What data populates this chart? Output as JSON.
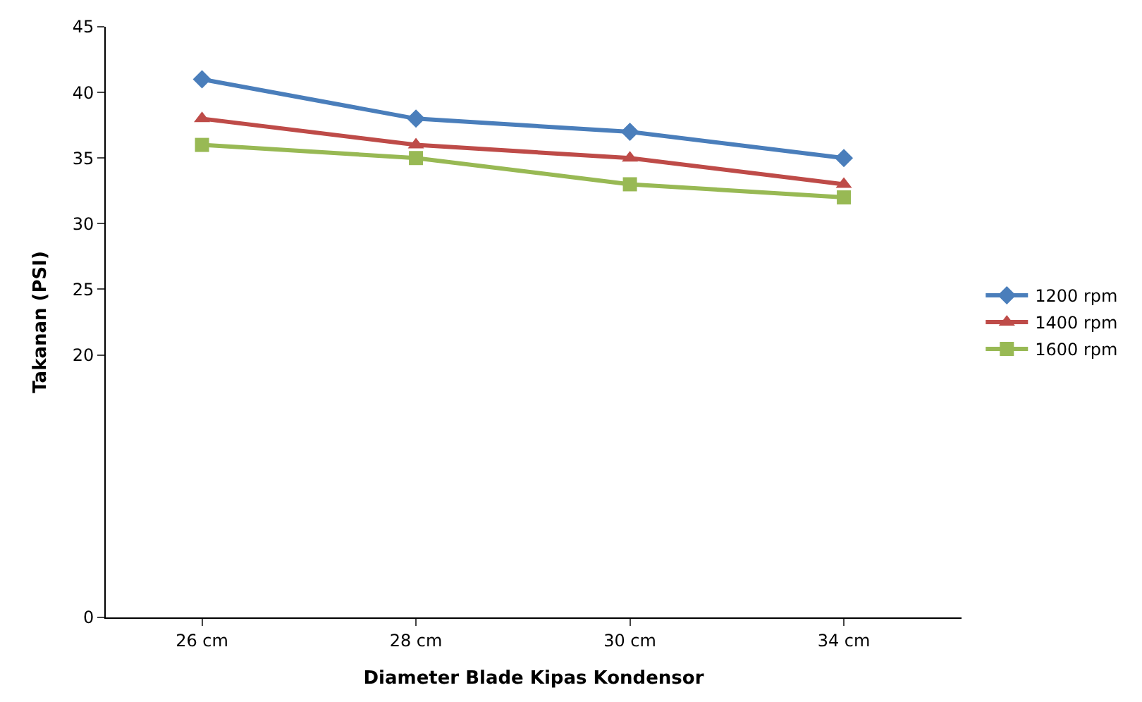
{
  "chart_data": {
    "type": "line",
    "xlabel": "Diameter Blade Kipas Kondensor",
    "ylabel": "Takanan (PSI)",
    "categories": [
      "26 cm",
      "28 cm",
      "30 cm",
      "34 cm"
    ],
    "ylim": [
      0,
      45
    ],
    "yticks": [
      0,
      20,
      25,
      30,
      35,
      40,
      45
    ],
    "legend": "right",
    "line_style": "solid",
    "series": [
      {
        "name": "1200 rpm",
        "color": "#4a7ebb",
        "marker": "diamond",
        "values": [
          41,
          38,
          37,
          35
        ]
      },
      {
        "name": "1400 rpm",
        "color": "#be4b48",
        "marker": "triangle",
        "values": [
          38,
          36,
          35,
          33
        ]
      },
      {
        "name": "1600 rpm",
        "color": "#98b954",
        "marker": "square",
        "values": [
          36,
          35,
          33,
          32
        ]
      }
    ]
  }
}
